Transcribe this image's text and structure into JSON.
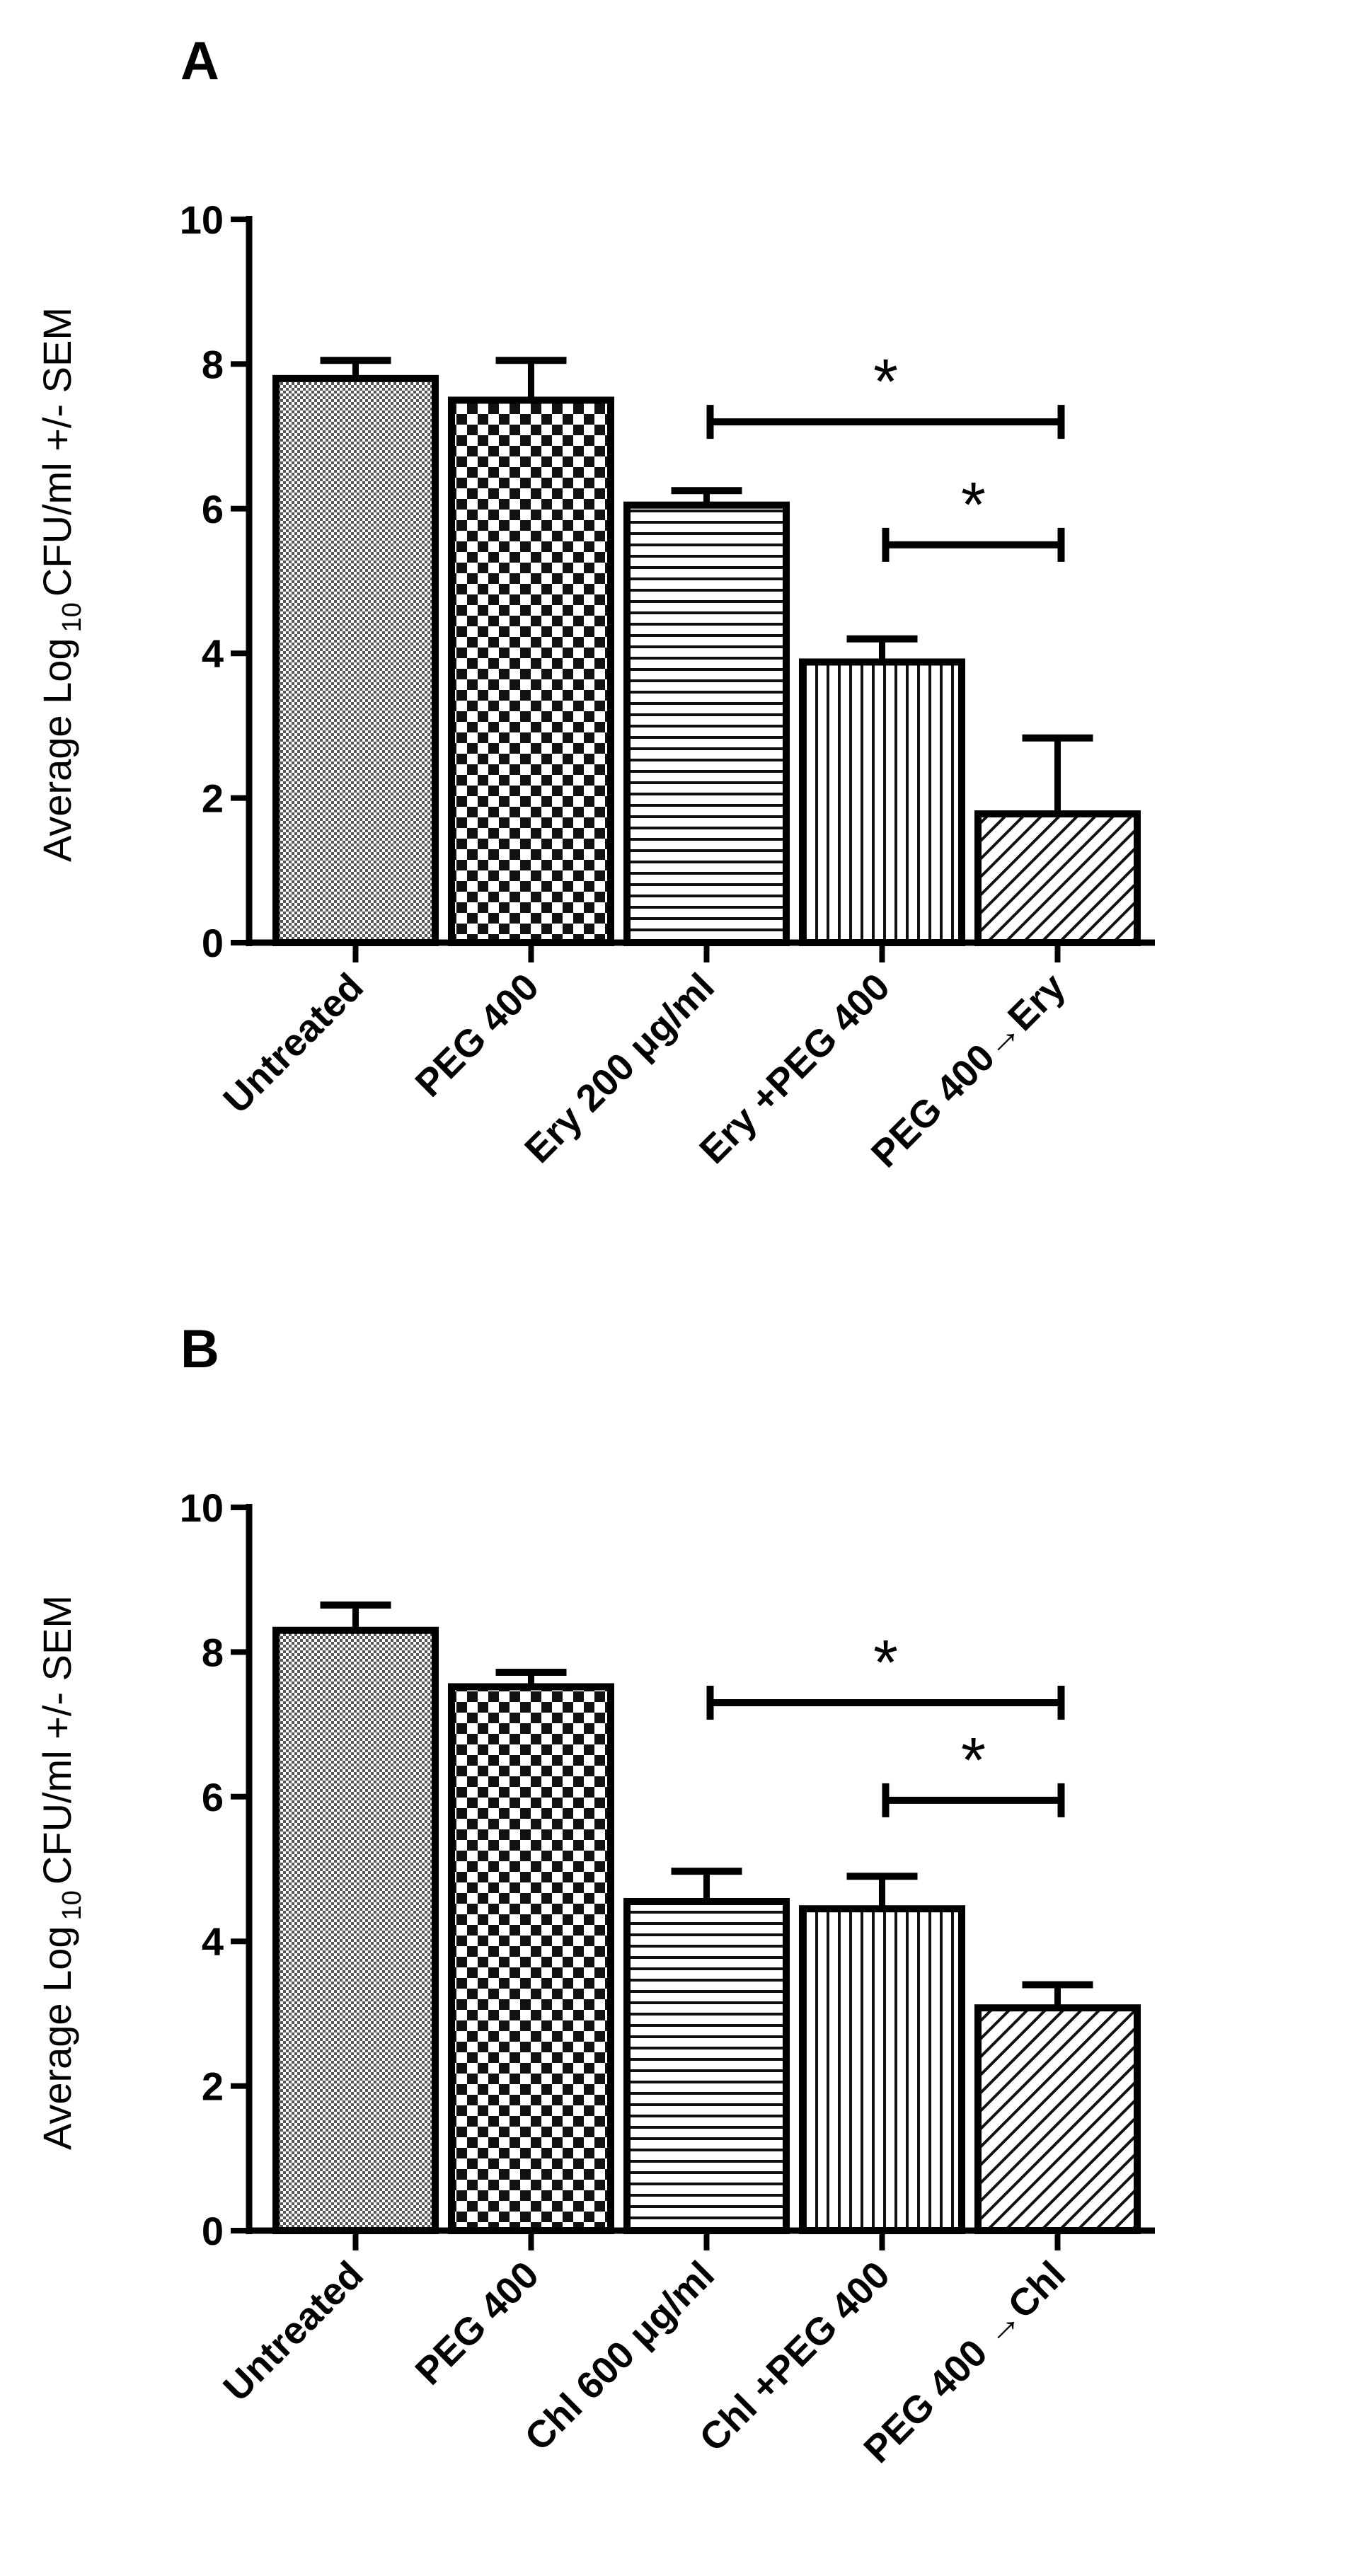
{
  "chart_data": [
    {
      "type": "bar",
      "panel": "A",
      "ylabel_parts": [
        "Average Log",
        "10",
        "CFU/ml  +/- SEM"
      ],
      "ylim": [
        0,
        10
      ],
      "yticks": [
        "0",
        "2",
        "4",
        "6",
        "8",
        "10"
      ],
      "categories": [
        "Untreated",
        "PEG 400",
        "Ery 200 μg/ml",
        "Ery +PEG 400",
        "PEG 400→Ery"
      ],
      "values": [
        7.8,
        7.5,
        6.05,
        3.88,
        1.78
      ],
      "errors": [
        0.25,
        0.55,
        0.2,
        0.32,
        1.05
      ],
      "patterns": [
        "fine-check",
        "checker",
        "horizontal",
        "vertical",
        "diagonal"
      ],
      "significance": [
        {
          "from": 2,
          "to": 4,
          "y": 7.2,
          "label": "*"
        },
        {
          "from": 3,
          "to": 4,
          "y": 5.5,
          "label": "*"
        }
      ]
    },
    {
      "type": "bar",
      "panel": "B",
      "ylabel_parts": [
        "Average Log",
        "10",
        "CFU/ml  +/- SEM"
      ],
      "ylim": [
        0,
        10
      ],
      "yticks": [
        "0",
        "2",
        "4",
        "6",
        "8",
        "10"
      ],
      "categories": [
        "Untreated",
        "PEG 400",
        "Chl 600  μg/ml",
        "Chl +PEG 400",
        "PEG 400 →Chl"
      ],
      "values": [
        8.3,
        7.52,
        4.55,
        4.45,
        3.08
      ],
      "errors": [
        0.35,
        0.2,
        0.42,
        0.45,
        0.32
      ],
      "patterns": [
        "fine-check",
        "checker",
        "horizontal",
        "vertical",
        "diagonal"
      ],
      "significance": [
        {
          "from": 2,
          "to": 4,
          "y": 7.3,
          "label": "*"
        },
        {
          "from": 3,
          "to": 4,
          "y": 5.95,
          "label": "*"
        }
      ]
    }
  ]
}
